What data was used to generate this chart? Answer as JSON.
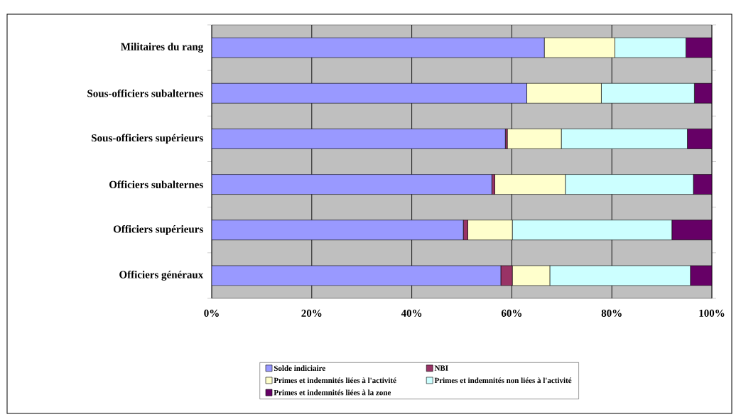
{
  "chart_data": {
    "type": "bar",
    "orientation": "horizontal",
    "stacked": true,
    "categories": [
      "Militaires du rang",
      "Sous-officiers subalternes",
      "Sous-officiers supérieurs",
      "Officiers subalternes",
      "Officiers supérieurs",
      "Officiers généraux"
    ],
    "series": [
      {
        "name": "Solde indiciaire",
        "color": "#9999ff",
        "values": [
          66.5,
          63.0,
          58.7,
          56.0,
          50.3,
          57.8
        ]
      },
      {
        "name": "NBI",
        "color": "#993366",
        "values": [
          0,
          0,
          0.4,
          0.6,
          0.9,
          2.3
        ]
      },
      {
        "name": "Primes et indemnités liées à l'activité",
        "color": "#ffffcc",
        "values": [
          14.1,
          14.9,
          10.8,
          14.1,
          8.9,
          7.5
        ]
      },
      {
        "name": "Primes et indemnités non liées à l'activité",
        "color": "#ccffff",
        "values": [
          14.2,
          18.6,
          25.2,
          25.6,
          31.9,
          28.1
        ]
      },
      {
        "name": "Primes et indemnités liées à la zone",
        "color": "#660066",
        "values": [
          5.2,
          3.5,
          4.9,
          3.7,
          8.0,
          4.3
        ]
      }
    ],
    "xlim": [
      0,
      100
    ],
    "xticks": [
      {
        "value": 0,
        "label": "0%"
      },
      {
        "value": 20,
        "label": "20%"
      },
      {
        "value": 40,
        "label": "40%"
      },
      {
        "value": 60,
        "label": "60%"
      },
      {
        "value": 80,
        "label": "80%"
      },
      {
        "value": 100,
        "label": "100%"
      }
    ],
    "grid": "x",
    "legend": "bottom"
  }
}
